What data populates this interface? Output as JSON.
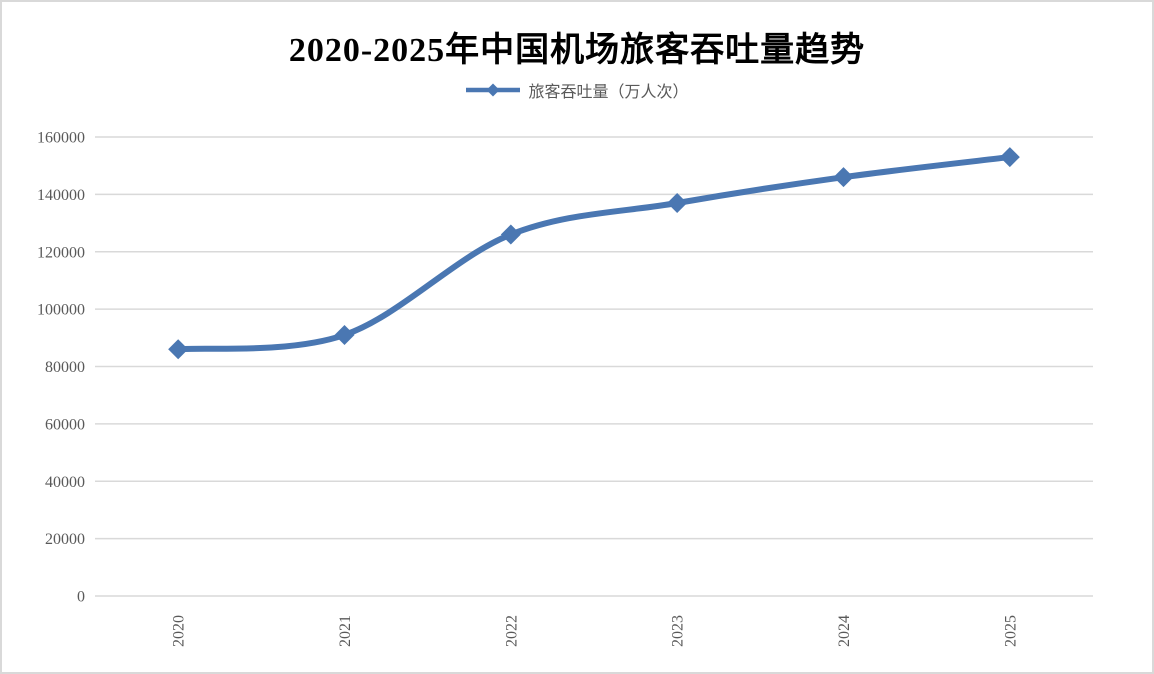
{
  "chart_data": {
    "type": "line",
    "title": "2020-2025年中国机场旅客吞吐量趋势",
    "categories": [
      "2020",
      "2021",
      "2022",
      "2023",
      "2024",
      "2025"
    ],
    "series": [
      {
        "name": "旅客吞吐量（万人次）",
        "values": [
          86000,
          91000,
          126000,
          137000,
          146000,
          153000
        ]
      }
    ],
    "xlabel": "",
    "ylabel": "",
    "ylim": [
      0,
      160000
    ],
    "ytick_step": 20000,
    "yticks": [
      0,
      20000,
      40000,
      60000,
      80000,
      100000,
      120000,
      140000,
      160000
    ],
    "grid": true,
    "smooth_line": true,
    "marker_shape": "diamond",
    "legend_position": "top-center",
    "x_tick_rotation": -90,
    "colors": {
      "line": "#4a77b2",
      "grid": "#d9d9d9",
      "tick_label": "#595959",
      "title": "#000000",
      "frame": "#d9d9d9"
    }
  }
}
